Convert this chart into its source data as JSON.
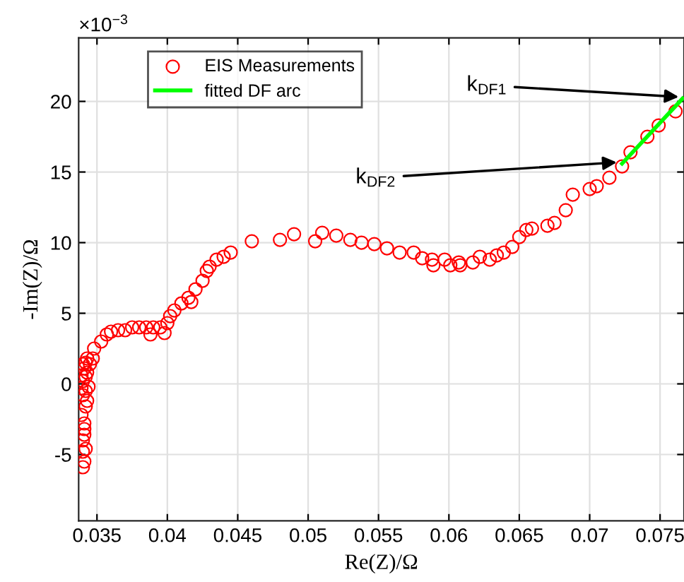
{
  "chart_data": {
    "type": "scatter",
    "xlabel": "Re(Z)/Ω",
    "ylabel": "-Im(Z)/Ω",
    "xlim": [
      0.0337,
      0.0767
    ],
    "ylim": [
      -9.7,
      24.5
    ],
    "xticks": [
      0.035,
      0.04,
      0.045,
      0.05,
      0.055,
      0.06,
      0.065,
      0.07,
      0.075
    ],
    "yticks": [
      -5,
      0,
      5,
      10,
      15,
      20
    ],
    "grid": true,
    "legend": "top left",
    "annotations": [
      "×10$^{−3}$",
      {
        "text": "k$_{DF1}$",
        "x": 0.0766,
        "y": 20.3
      },
      {
        "text": "k$_{DF2}$",
        "x": 0.0722,
        "y": 15.7
      }
    ],
    "series": [
      {
        "name": "EIS Measurements",
        "marker": "circle",
        "color": "#ff0000",
        "x": [
          0.034,
          0.0341,
          0.034,
          0.0342,
          0.034,
          0.0341,
          0.0341,
          0.0341,
          0.0339,
          0.0342,
          0.0343,
          0.034,
          0.0342,
          0.0339,
          0.0344,
          0.034,
          0.0342,
          0.0339,
          0.0343,
          0.0341,
          0.0342,
          0.034,
          0.0343,
          0.0345,
          0.0347,
          0.0348,
          0.0353,
          0.0357,
          0.036,
          0.0365,
          0.037,
          0.0375,
          0.038,
          0.0385,
          0.0388,
          0.039,
          0.0395,
          0.0398,
          0.04,
          0.0402,
          0.0405,
          0.041,
          0.0415,
          0.0417,
          0.042,
          0.0425,
          0.0428,
          0.043,
          0.0435,
          0.044,
          0.0445,
          0.046,
          0.048,
          0.049,
          0.0505,
          0.051,
          0.052,
          0.053,
          0.0538,
          0.0547,
          0.0556,
          0.0565,
          0.0575,
          0.0581,
          0.0588,
          0.0589,
          0.0597,
          0.0601,
          0.0607,
          0.0608,
          0.0617,
          0.0622,
          0.0629,
          0.0634,
          0.0639,
          0.0645,
          0.065,
          0.0655,
          0.0659,
          0.067,
          0.0675,
          0.0683,
          0.0688,
          0.07,
          0.0705,
          0.0714,
          0.0723,
          0.0729,
          0.0741,
          0.0749,
          0.0761
        ],
        "values": [
          -5.9,
          -5.5,
          -4.8,
          -4.6,
          -4,
          -3.6,
          -3.2,
          -2.8,
          -2.2,
          -1.6,
          -1.2,
          -0.8,
          -0.5,
          -0.3,
          -0.2,
          0.2,
          0.5,
          0.6,
          0.8,
          1.1,
          1.5,
          1.4,
          1.8,
          1.4,
          1.8,
          2.5,
          3,
          3.5,
          3.7,
          3.8,
          3.8,
          4,
          4,
          4,
          3.5,
          4,
          4,
          3.6,
          4.3,
          4.8,
          5.2,
          5.7,
          6.1,
          5.8,
          6.7,
          7.3,
          8,
          8.3,
          8.8,
          9,
          9.3,
          10.1,
          10.2,
          10.6,
          10.1,
          10.7,
          10.5,
          10.2,
          10,
          9.9,
          9.6,
          9.3,
          9.3,
          8.9,
          8.8,
          8.4,
          8.8,
          8.4,
          8.6,
          8.4,
          8.6,
          9,
          8.8,
          9.1,
          9.3,
          9.7,
          10.4,
          10.9,
          11,
          11.2,
          11.4,
          12.3,
          13.4,
          13.8,
          14,
          14.6,
          15.4,
          16.4,
          17.5,
          18.3,
          19.3
        ]
      },
      {
        "name": "fitted DF arc",
        "type": "line",
        "color": "#00ff00",
        "line_style": "solid",
        "x": [
          0.0723,
          0.0766
        ],
        "values": [
          15.6,
          20.2
        ]
      }
    ]
  }
}
